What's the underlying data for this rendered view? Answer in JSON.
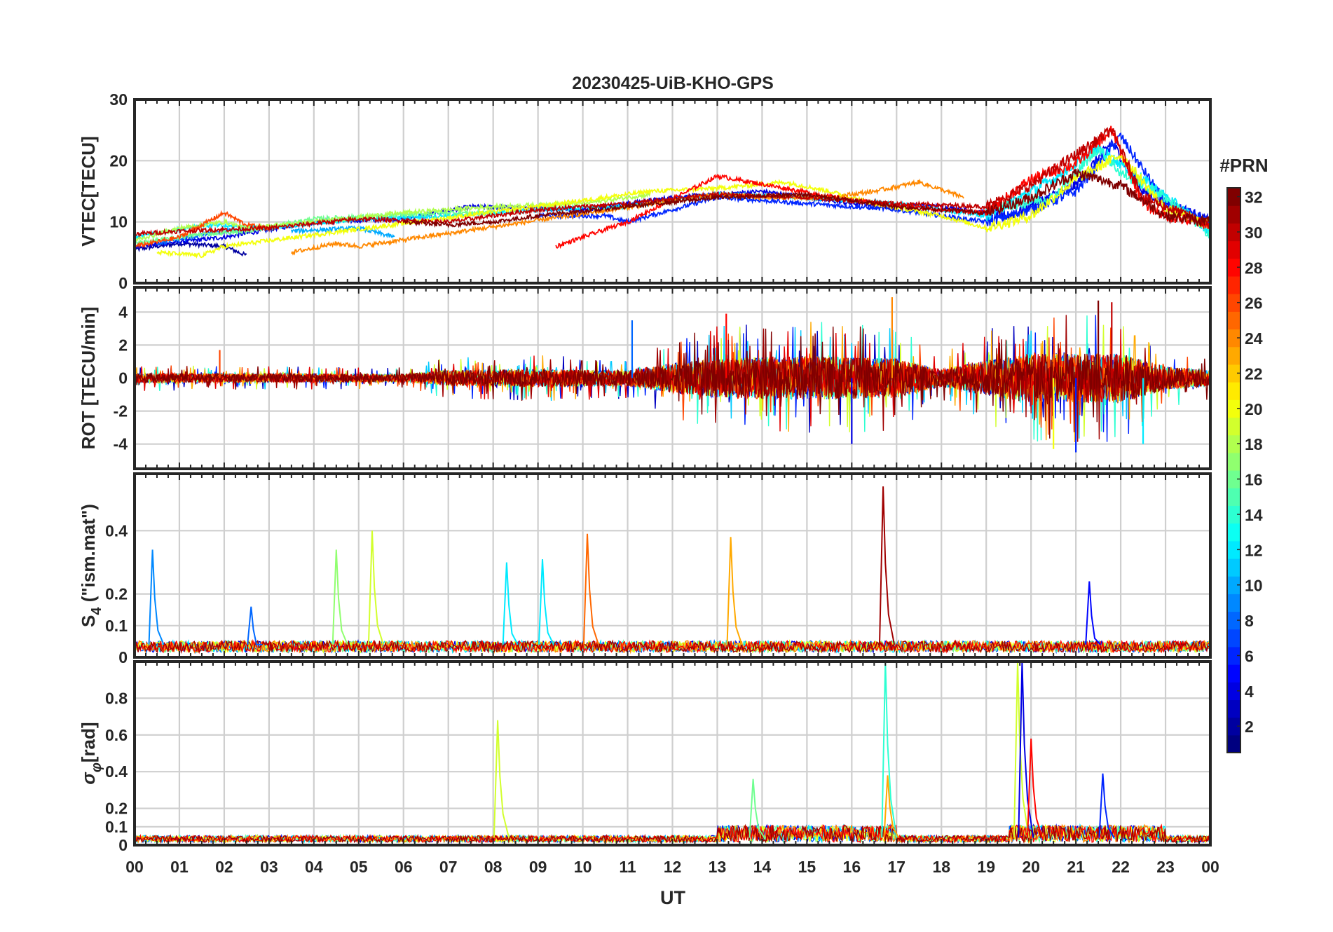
{
  "chart_data": {
    "title": "20230425-UiB-KHO-GPS",
    "type": "line",
    "xlabel": "UT",
    "x_tick_labels": [
      "00",
      "01",
      "02",
      "03",
      "04",
      "05",
      "06",
      "07",
      "08",
      "09",
      "10",
      "11",
      "12",
      "13",
      "14",
      "15",
      "16",
      "17",
      "18",
      "19",
      "20",
      "21",
      "22",
      "23",
      "00"
    ],
    "xlim_hours": [
      0,
      24
    ],
    "grid": true,
    "colorbar": {
      "title": "#PRN",
      "colormap": "jet",
      "range": [
        1,
        32
      ],
      "tick_labels": [
        "2",
        "4",
        "6",
        "8",
        "10",
        "12",
        "14",
        "16",
        "18",
        "20",
        "22",
        "24",
        "26",
        "28",
        "30",
        "32"
      ]
    },
    "panels": [
      {
        "id": "vtec",
        "ylabel": "VTEC[TECU]",
        "ylim": [
          0,
          30
        ],
        "yticks": [
          0,
          10,
          20,
          30
        ],
        "ytick_labels": [
          "0",
          "10",
          "20",
          "30"
        ],
        "series": [
          {
            "prn": 2,
            "points": [
              [
                0.0,
                5.5
              ],
              [
                1.0,
                6.5
              ],
              [
                2.0,
                6.0
              ],
              [
                2.5,
                4.5
              ]
            ]
          },
          {
            "prn": 4,
            "points": [
              [
                0.0,
                6.0
              ],
              [
                2.0,
                7.5
              ],
              [
                4.0,
                10.0
              ],
              [
                6.0,
                10.5
              ],
              [
                7.5,
                12.5
              ],
              [
                10.0,
                12.0
              ],
              [
                12.0,
                14.0
              ],
              [
                14.0,
                15.0
              ],
              [
                16.0,
                13.0
              ],
              [
                18.0,
                12.5
              ],
              [
                19.5,
                11.0
              ],
              [
                21.0,
                16.0
              ],
              [
                21.8,
                23.0
              ],
              [
                22.5,
                15.0
              ],
              [
                24.0,
                10.0
              ]
            ]
          },
          {
            "prn": 6,
            "points": [
              [
                9.0,
                11.0
              ],
              [
                10.5,
                11.0
              ],
              [
                11.0,
                10.0
              ],
              [
                13.0,
                14.0
              ],
              [
                15.0,
                13.0
              ],
              [
                17.0,
                12.0
              ],
              [
                19.0,
                10.0
              ],
              [
                20.0,
                12.0
              ],
              [
                21.0,
                15.0
              ],
              [
                22.0,
                24.0
              ],
              [
                23.0,
                13.0
              ],
              [
                24.0,
                10.0
              ]
            ]
          },
          {
            "prn": 8,
            "points": [
              [
                0.5,
                6.5
              ],
              [
                2.0,
                8.5
              ],
              [
                3.0,
                9.0
              ]
            ]
          },
          {
            "prn": 10,
            "points": [
              [
                3.5,
                8.5
              ],
              [
                5.0,
                9.0
              ],
              [
                5.8,
                7.5
              ]
            ]
          },
          {
            "prn": 12,
            "points": [
              [
                0.0,
                7.5
              ],
              [
                1.5,
                9.5
              ],
              [
                3.0,
                9.0
              ],
              [
                5.0,
                10.5
              ],
              [
                7.0,
                11.0
              ],
              [
                9.0,
                12.0
              ],
              [
                11.0,
                12.5
              ],
              [
                13.0,
                14.5
              ],
              [
                15.0,
                14.0
              ],
              [
                17.0,
                13.0
              ],
              [
                19.0,
                11.0
              ],
              [
                20.5,
                17.0
              ],
              [
                21.5,
                22.0
              ],
              [
                22.5,
                17.0
              ],
              [
                24.0,
                8.5
              ]
            ]
          },
          {
            "prn": 14,
            "points": [
              [
                19.0,
                12.0
              ],
              [
                20.5,
                14.0
              ],
              [
                21.5,
                22.0
              ],
              [
                22.0,
                18.0
              ],
              [
                23.0,
                14.0
              ],
              [
                24.0,
                8.0
              ]
            ]
          },
          {
            "prn": 16,
            "points": [
              [
                0.0,
                6.5
              ],
              [
                1.5,
                8.0
              ],
              [
                2.5,
                8.5
              ],
              [
                4.0,
                10.5
              ],
              [
                5.5,
                11.0
              ],
              [
                7.0,
                11.5
              ],
              [
                8.0,
                11.5
              ]
            ]
          },
          {
            "prn": 18,
            "points": [
              [
                0.0,
                7.0
              ],
              [
                1.0,
                9.0
              ],
              [
                2.0,
                10.0
              ],
              [
                2.5,
                9.0
              ],
              [
                4.0,
                10.0
              ],
              [
                6.0,
                11.5
              ],
              [
                8.0,
                12.5
              ],
              [
                10.0,
                13.0
              ],
              [
                11.5,
                14.5
              ]
            ]
          },
          {
            "prn": 20,
            "points": [
              [
                0.5,
                5.0
              ],
              [
                1.5,
                4.5
              ],
              [
                2.0,
                6.0
              ],
              [
                10.0,
                13.5
              ],
              [
                11.5,
                15.0
              ],
              [
                13.0,
                15.5
              ],
              [
                14.5,
                16.5
              ],
              [
                15.5,
                15.0
              ],
              [
                16.5,
                13.0
              ],
              [
                18.0,
                11.0
              ],
              [
                19.0,
                9.0
              ],
              [
                20.0,
                11.0
              ],
              [
                21.0,
                17.0
              ],
              [
                22.0,
                21.0
              ],
              [
                23.0,
                12.0
              ],
              [
                24.0,
                9.5
              ]
            ]
          },
          {
            "prn": 24,
            "points": [
              [
                3.5,
                5.0
              ],
              [
                4.5,
                6.5
              ],
              [
                5.0,
                6.0
              ],
              [
                13.0,
                14.5
              ],
              [
                14.0,
                14.0
              ],
              [
                15.5,
                14.0
              ],
              [
                16.5,
                15.0
              ],
              [
                17.5,
                16.5
              ],
              [
                18.5,
                14.0
              ]
            ]
          },
          {
            "prn": 26,
            "points": [
              [
                0.0,
                6.0
              ],
              [
                1.0,
                7.5
              ],
              [
                2.0,
                11.5
              ],
              [
                2.5,
                9.5
              ],
              [
                3.0,
                9.0
              ]
            ]
          },
          {
            "prn": 28,
            "points": [
              [
                9.4,
                6.0
              ],
              [
                11.0,
                10.0
              ],
              [
                13.0,
                17.5
              ],
              [
                14.5,
                15.5
              ],
              [
                16.0,
                13.5
              ],
              [
                18.0,
                12.0
              ],
              [
                19.0,
                11.5
              ],
              [
                20.0,
                17.0
              ],
              [
                21.0,
                19.5
              ],
              [
                21.8,
                25.0
              ],
              [
                22.5,
                13.0
              ],
              [
                23.0,
                11.0
              ],
              [
                24.0,
                9.5
              ]
            ]
          },
          {
            "prn": 30,
            "points": [
              [
                0.0,
                8.0
              ],
              [
                1.0,
                8.5
              ],
              [
                3.0,
                9.0
              ],
              [
                5.0,
                10.5
              ],
              [
                7.0,
                10.0
              ],
              [
                9.0,
                12.0
              ],
              [
                11.0,
                13.0
              ],
              [
                13.0,
                14.5
              ],
              [
                15.0,
                14.0
              ],
              [
                17.0,
                13.0
              ],
              [
                19.0,
                12.5
              ],
              [
                20.0,
                16.0
              ],
              [
                21.0,
                21.0
              ],
              [
                21.8,
                25.0
              ],
              [
                22.5,
                14.0
              ],
              [
                24.0,
                9.5
              ]
            ]
          },
          {
            "prn": 32,
            "points": [
              [
                6.0,
                10.0
              ],
              [
                7.0,
                9.5
              ],
              [
                8.0,
                10.0
              ],
              [
                9.0,
                11.0
              ],
              [
                11.0,
                12.5
              ],
              [
                13.0,
                14.0
              ],
              [
                15.0,
                14.5
              ],
              [
                17.0,
                12.5
              ],
              [
                19.0,
                11.5
              ],
              [
                20.0,
                14.0
              ],
              [
                21.0,
                18.0
              ],
              [
                22.0,
                16.0
              ],
              [
                23.0,
                11.0
              ],
              [
                24.0,
                10.0
              ]
            ]
          }
        ]
      },
      {
        "id": "rot",
        "ylabel": "ROT [TECU/min]",
        "ylim": [
          -5.5,
          5.5
        ],
        "yticks": [
          -4,
          -2,
          0,
          2,
          4
        ],
        "ytick_labels": [
          "-4",
          "-2",
          "0",
          "2",
          "4"
        ],
        "envelope": [
          [
            0,
            0.5
          ],
          [
            6,
            0.4
          ],
          [
            7,
            0.8
          ],
          [
            9,
            0.9
          ],
          [
            11,
            0.8
          ],
          [
            12,
            1.5
          ],
          [
            13,
            2.0
          ],
          [
            15,
            2.2
          ],
          [
            17,
            2.0
          ],
          [
            18,
            0.9
          ],
          [
            19,
            1.8
          ],
          [
            20,
            2.5
          ],
          [
            21,
            2.5
          ],
          [
            22,
            2.5
          ],
          [
            23,
            1.2
          ],
          [
            24,
            0.8
          ]
        ],
        "spikes": [
          {
            "prn": 26,
            "x": 1.9,
            "y": 1.7
          },
          {
            "prn": 8,
            "x": 11.1,
            "y": 3.5
          },
          {
            "prn": 28,
            "x": 13.2,
            "y": 3.9
          },
          {
            "prn": 24,
            "x": 16.9,
            "y": 4.9
          },
          {
            "prn": 4,
            "x": 16.0,
            "y": -4.0
          },
          {
            "prn": 20,
            "x": 20.5,
            "y": -4.3
          },
          {
            "prn": 32,
            "x": 21.5,
            "y": 4.7
          },
          {
            "prn": 30,
            "x": 21.8,
            "y": 4.6
          },
          {
            "prn": 6,
            "x": 21.0,
            "y": -4.5
          },
          {
            "prn": 12,
            "x": 22.5,
            "y": -4.0
          }
        ]
      },
      {
        "id": "s4",
        "ylabel": "S_4 (\"ism.mat\")",
        "ylabel_parts": {
          "base": "S",
          "sub": "4",
          "rest": " (\"ism.mat\")"
        },
        "ylim": [
          0,
          0.58
        ],
        "yticks": [
          0,
          0.1,
          0.2,
          0.4
        ],
        "ytick_labels": [
          "0",
          "0.1",
          "0.2",
          "0.4"
        ],
        "baseline": 0.04,
        "spikes": [
          {
            "prn": 9,
            "x": 0.4,
            "y": 0.34
          },
          {
            "prn": 8,
            "x": 2.6,
            "y": 0.16
          },
          {
            "prn": 17,
            "x": 4.5,
            "y": 0.34
          },
          {
            "prn": 19,
            "x": 5.3,
            "y": 0.4
          },
          {
            "prn": 12,
            "x": 8.3,
            "y": 0.3
          },
          {
            "prn": 12,
            "x": 9.1,
            "y": 0.31
          },
          {
            "prn": 25,
            "x": 10.1,
            "y": 0.39
          },
          {
            "prn": 23,
            "x": 13.3,
            "y": 0.38
          },
          {
            "prn": 31,
            "x": 16.7,
            "y": 0.54
          },
          {
            "prn": 5,
            "x": 21.3,
            "y": 0.24
          }
        ]
      },
      {
        "id": "sigphi",
        "ylabel": "σ_φ[rad]",
        "ylabel_parts": {
          "base": "σ",
          "sub": "φ",
          "rest": "[rad]"
        },
        "ylim": [
          0,
          1.0
        ],
        "yticks": [
          0,
          0.1,
          0.2,
          0.4,
          0.6,
          0.8
        ],
        "ytick_labels": [
          "0",
          "0.1",
          "0.2",
          "0.4",
          "0.6",
          "0.8"
        ],
        "baseline": 0.04,
        "spikes": [
          {
            "prn": 19,
            "x": 8.1,
            "y": 0.68
          },
          {
            "prn": 16,
            "x": 13.8,
            "y": 0.36
          },
          {
            "prn": 14,
            "x": 16.75,
            "y": 1.0
          },
          {
            "prn": 23,
            "x": 16.8,
            "y": 0.38
          },
          {
            "prn": 19,
            "x": 19.7,
            "y": 1.0
          },
          {
            "prn": 4,
            "x": 19.8,
            "y": 1.0
          },
          {
            "prn": 28,
            "x": 20.0,
            "y": 0.58
          },
          {
            "prn": 6,
            "x": 21.6,
            "y": 0.39
          }
        ]
      }
    ]
  }
}
